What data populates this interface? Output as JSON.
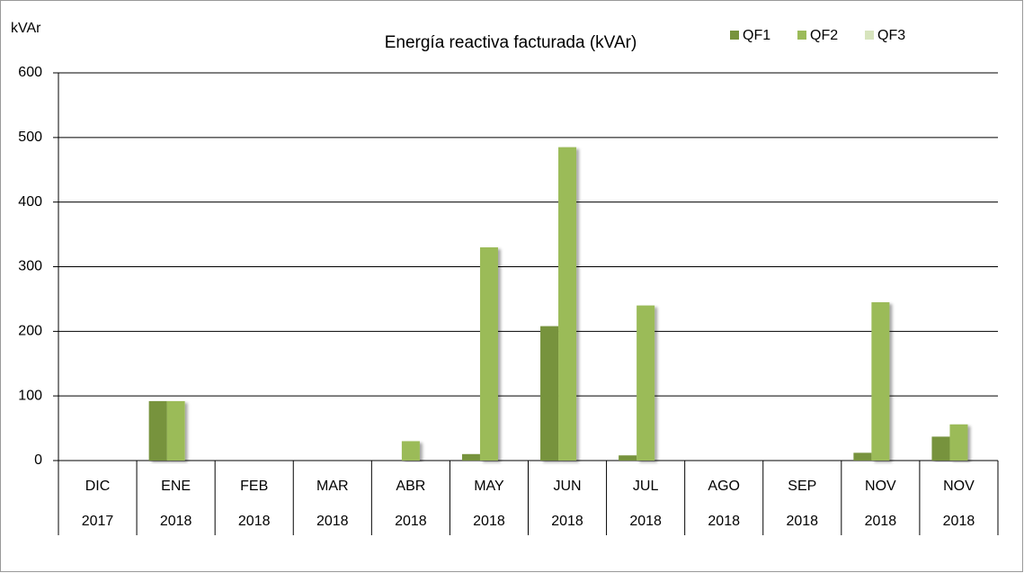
{
  "chart_data": {
    "type": "bar",
    "title": "Energía reactiva facturada (kVAr)",
    "y_label": "kVAr",
    "categories": [
      [
        "DIC",
        "2017"
      ],
      [
        "ENE",
        "2018"
      ],
      [
        "FEB",
        "2018"
      ],
      [
        "MAR",
        "2018"
      ],
      [
        "ABR",
        "2018"
      ],
      [
        "MAY",
        "2018"
      ],
      [
        "JUN",
        "2018"
      ],
      [
        "JUL",
        "2018"
      ],
      [
        "AGO",
        "2018"
      ],
      [
        "SEP",
        "2018"
      ],
      [
        "NOV",
        "2018"
      ],
      [
        "NOV",
        "2018"
      ]
    ],
    "series": [
      {
        "name": "QF1",
        "color": "#77933c",
        "values": [
          0,
          92,
          0,
          0,
          0,
          10,
          208,
          8,
          0,
          0,
          12,
          37
        ]
      },
      {
        "name": "QF2",
        "color": "#9bbb59",
        "values": [
          0,
          92,
          0,
          0,
          30,
          330,
          485,
          240,
          0,
          0,
          245,
          56
        ]
      },
      {
        "name": "QF3",
        "color": "#d7e4bd",
        "values": [
          0,
          0,
          0,
          0,
          0,
          0,
          0,
          0,
          0,
          0,
          0,
          0
        ]
      }
    ],
    "ylim": [
      0,
      600
    ],
    "yticks": [
      0,
      100,
      200,
      300,
      400,
      500,
      600
    ],
    "grid": true,
    "legend": "top-right"
  }
}
